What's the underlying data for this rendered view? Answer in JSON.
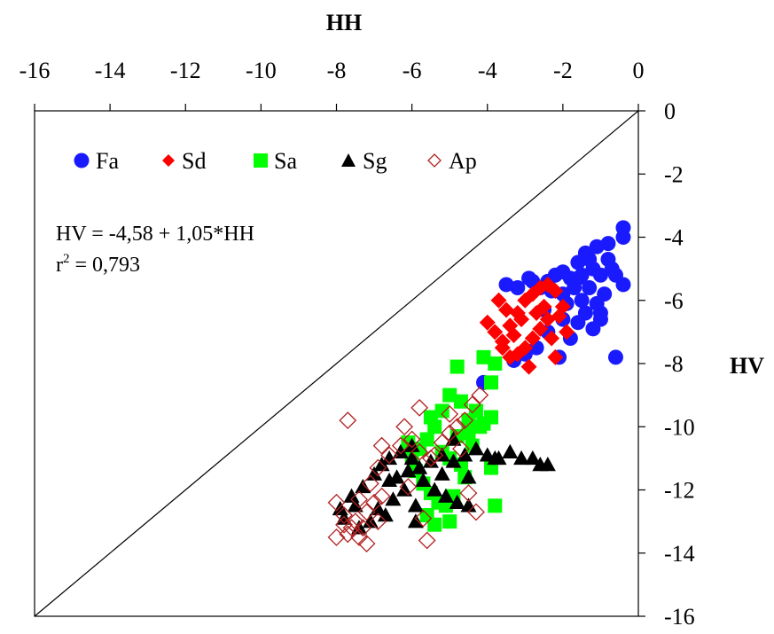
{
  "chart_data": {
    "type": "scatter",
    "xlabel": "HH",
    "ylabel": "HV",
    "xlim": [
      -16,
      0
    ],
    "ylim": [
      -16,
      0
    ],
    "x_ticks": [
      -16,
      -14,
      -12,
      -10,
      -8,
      -6,
      -4,
      -2,
      0
    ],
    "y_ticks": [
      0,
      -2,
      -4,
      -6,
      -8,
      -10,
      -12,
      -14,
      -16
    ],
    "x_tick_labels": [
      "-16",
      "-14",
      "-12",
      "-10",
      "-8",
      "-6",
      "-4",
      "-2",
      "0"
    ],
    "y_tick_labels": [
      "0",
      "-2",
      "-4",
      "-6",
      "-8",
      "-10",
      "-12",
      "-14",
      "-16"
    ],
    "x_axis_position": "top",
    "y_axis_position": "right",
    "grid": false,
    "legend": "top-left",
    "reference_line": "1:1",
    "annotation": {
      "equation": "HV = -4,58 + 1,05*HH",
      "r2_prefix": "r",
      "r2_sup": "2",
      "r2_value": " = 0,793"
    },
    "series": [
      {
        "name": "Fa",
        "marker": "circle",
        "color": "#1a1aff",
        "points": [
          [
            -0.4,
            -3.7
          ],
          [
            -0.4,
            -4.0
          ],
          [
            -0.6,
            -5.2
          ],
          [
            -0.4,
            -5.5
          ],
          [
            -0.6,
            -7.8
          ],
          [
            -0.8,
            -4.2
          ],
          [
            -1.1,
            -4.3
          ],
          [
            -1.2,
            -5.0
          ],
          [
            -1.4,
            -4.5
          ],
          [
            -1.5,
            -5.2
          ],
          [
            -1.6,
            -4.8
          ],
          [
            -1.0,
            -5.2
          ],
          [
            -0.9,
            -5.8
          ],
          [
            -1.3,
            -5.6
          ],
          [
            -1.7,
            -5.6
          ],
          [
            -1.8,
            -5.3
          ],
          [
            -2.0,
            -5.1
          ],
          [
            -2.2,
            -5.2
          ],
          [
            -2.4,
            -5.4
          ],
          [
            -1.5,
            -6.0
          ],
          [
            -1.1,
            -6.1
          ],
          [
            -1.0,
            -6.6
          ],
          [
            -1.4,
            -6.4
          ],
          [
            -1.9,
            -6.1
          ],
          [
            -2.0,
            -5.8
          ],
          [
            -2.3,
            -5.7
          ],
          [
            -2.6,
            -5.6
          ],
          [
            -2.8,
            -5.4
          ],
          [
            -3.2,
            -5.6
          ],
          [
            -3.5,
            -5.5
          ],
          [
            -1.2,
            -6.9
          ],
          [
            -1.6,
            -6.7
          ],
          [
            -2.0,
            -6.6
          ],
          [
            -1.8,
            -7.2
          ],
          [
            -2.4,
            -7.0
          ],
          [
            -2.7,
            -7.5
          ],
          [
            -3.0,
            -7.7
          ],
          [
            -2.1,
            -7.8
          ],
          [
            -2.5,
            -6.3
          ],
          [
            -0.7,
            -5.0
          ],
          [
            -0.8,
            -4.7
          ],
          [
            -1.3,
            -4.7
          ],
          [
            -2.9,
            -5.3
          ],
          [
            -3.3,
            -7.9
          ],
          [
            -4.1,
            -8.6
          ],
          [
            -1.0,
            -6.4
          ],
          [
            -1.6,
            -5.3
          ]
        ]
      },
      {
        "name": "Sd",
        "marker": "diamond",
        "color": "#ff0000",
        "points": [
          [
            -4.0,
            -6.7
          ],
          [
            -3.8,
            -7.0
          ],
          [
            -3.6,
            -7.3
          ],
          [
            -3.4,
            -6.8
          ],
          [
            -3.2,
            -6.4
          ],
          [
            -3.0,
            -6.0
          ],
          [
            -2.8,
            -5.8
          ],
          [
            -2.6,
            -5.6
          ],
          [
            -2.4,
            -5.5
          ],
          [
            -2.2,
            -5.7
          ],
          [
            -2.0,
            -6.2
          ],
          [
            -2.4,
            -6.6
          ],
          [
            -2.6,
            -6.9
          ],
          [
            -2.8,
            -7.2
          ],
          [
            -3.0,
            -7.5
          ],
          [
            -3.2,
            -7.7
          ],
          [
            -3.4,
            -7.8
          ],
          [
            -3.6,
            -7.5
          ],
          [
            -2.9,
            -8.1
          ],
          [
            -2.2,
            -7.8
          ],
          [
            -1.9,
            -7.0
          ],
          [
            -2.1,
            -6.5
          ],
          [
            -2.5,
            -6.2
          ],
          [
            -3.1,
            -6.6
          ],
          [
            -3.5,
            -6.3
          ],
          [
            -3.7,
            -6.0
          ],
          [
            -2.7,
            -6.4
          ],
          [
            -2.3,
            -7.2
          ],
          [
            -3.3,
            -7.1
          ]
        ]
      },
      {
        "name": "Sa",
        "marker": "square",
        "color": "#00ff00",
        "points": [
          [
            -4.8,
            -8.1
          ],
          [
            -4.1,
            -7.8
          ],
          [
            -3.8,
            -8.0
          ],
          [
            -3.9,
            -8.6
          ],
          [
            -4.3,
            -9.5
          ],
          [
            -4.5,
            -9.8
          ],
          [
            -4.2,
            -10.0
          ],
          [
            -3.9,
            -9.7
          ],
          [
            -4.7,
            -9.2
          ],
          [
            -5.0,
            -9.0
          ],
          [
            -5.2,
            -9.5
          ],
          [
            -5.4,
            -10.0
          ],
          [
            -5.6,
            -10.4
          ],
          [
            -5.8,
            -10.7
          ],
          [
            -6.0,
            -10.9
          ],
          [
            -5.9,
            -11.4
          ],
          [
            -5.7,
            -11.8
          ],
          [
            -5.5,
            -12.1
          ],
          [
            -5.3,
            -12.4
          ],
          [
            -5.6,
            -12.8
          ],
          [
            -5.4,
            -13.1
          ],
          [
            -5.1,
            -12.5
          ],
          [
            -4.9,
            -12.2
          ],
          [
            -4.6,
            -11.6
          ],
          [
            -4.7,
            -11.2
          ],
          [
            -5.0,
            -11.0
          ],
          [
            -4.4,
            -10.6
          ],
          [
            -4.1,
            -9.9
          ],
          [
            -4.8,
            -10.3
          ],
          [
            -5.2,
            -10.8
          ],
          [
            -3.8,
            -12.5
          ],
          [
            -3.9,
            -11.3
          ],
          [
            -5.5,
            -9.7
          ],
          [
            -6.1,
            -10.5
          ],
          [
            -5.0,
            -13.0
          ],
          [
            -4.5,
            -10.2
          ]
        ]
      },
      {
        "name": "Sg",
        "marker": "triangle",
        "color": "#000000",
        "points": [
          [
            -7.9,
            -12.6
          ],
          [
            -7.6,
            -12.2
          ],
          [
            -7.3,
            -11.9
          ],
          [
            -7.0,
            -11.5
          ],
          [
            -6.8,
            -11.2
          ],
          [
            -6.6,
            -11.0
          ],
          [
            -6.3,
            -10.8
          ],
          [
            -6.0,
            -11.0
          ],
          [
            -5.8,
            -11.3
          ],
          [
            -5.5,
            -11.1
          ],
          [
            -5.2,
            -10.9
          ],
          [
            -4.9,
            -11.1
          ],
          [
            -4.6,
            -10.9
          ],
          [
            -4.3,
            -10.7
          ],
          [
            -4.0,
            -10.9
          ],
          [
            -3.7,
            -11.0
          ],
          [
            -3.4,
            -10.8
          ],
          [
            -3.1,
            -11.0
          ],
          [
            -2.8,
            -11.0
          ],
          [
            -2.6,
            -11.2
          ],
          [
            -2.4,
            -11.2
          ],
          [
            -6.5,
            -12.3
          ],
          [
            -6.2,
            -12.0
          ],
          [
            -5.9,
            -12.5
          ],
          [
            -6.7,
            -12.8
          ],
          [
            -7.1,
            -13.0
          ],
          [
            -7.4,
            -13.2
          ],
          [
            -6.9,
            -12.6
          ],
          [
            -6.4,
            -11.6
          ],
          [
            -6.1,
            -11.4
          ],
          [
            -5.7,
            -11.7
          ],
          [
            -5.4,
            -12.0
          ],
          [
            -5.1,
            -12.2
          ],
          [
            -4.8,
            -12.4
          ],
          [
            -4.5,
            -12.5
          ],
          [
            -7.8,
            -12.9
          ],
          [
            -5.9,
            -13.0
          ],
          [
            -6.6,
            -11.7
          ],
          [
            -7.5,
            -12.5
          ],
          [
            -5.2,
            -11.5
          ],
          [
            -4.5,
            -11.6
          ],
          [
            -3.8,
            -11.0
          ],
          [
            -6.0,
            -10.6
          ],
          [
            -4.9,
            -10.4
          ]
        ]
      },
      {
        "name": "Ap",
        "marker": "diamond-open",
        "color": "#b22222",
        "points": [
          [
            -8.0,
            -12.4
          ],
          [
            -7.8,
            -12.8
          ],
          [
            -7.6,
            -13.2
          ],
          [
            -7.4,
            -13.5
          ],
          [
            -7.2,
            -13.7
          ],
          [
            -7.5,
            -13.0
          ],
          [
            -7.2,
            -12.7
          ],
          [
            -7.0,
            -12.4
          ],
          [
            -6.8,
            -12.2
          ],
          [
            -6.9,
            -13.0
          ],
          [
            -7.7,
            -13.4
          ],
          [
            -8.0,
            -13.5
          ],
          [
            -7.3,
            -13.2
          ],
          [
            -7.1,
            -11.8
          ],
          [
            -6.9,
            -11.3
          ],
          [
            -6.6,
            -10.9
          ],
          [
            -6.3,
            -10.6
          ],
          [
            -6.0,
            -10.4
          ],
          [
            -5.8,
            -10.8
          ],
          [
            -5.5,
            -11.0
          ],
          [
            -5.2,
            -10.5
          ],
          [
            -5.0,
            -10.2
          ],
          [
            -4.8,
            -10.0
          ],
          [
            -4.6,
            -9.8
          ],
          [
            -4.4,
            -9.3
          ],
          [
            -4.2,
            -9.0
          ],
          [
            -7.7,
            -9.8
          ],
          [
            -6.2,
            -10.0
          ],
          [
            -5.8,
            -9.4
          ],
          [
            -5.0,
            -9.6
          ],
          [
            -4.7,
            -10.7
          ],
          [
            -4.5,
            -12.1
          ],
          [
            -4.3,
            -12.7
          ],
          [
            -5.6,
            -13.6
          ],
          [
            -5.7,
            -12.9
          ],
          [
            -6.1,
            -11.9
          ],
          [
            -6.8,
            -10.6
          ],
          [
            -5.4,
            -10.9
          ],
          [
            -7.8,
            -13.1
          ],
          [
            -7.4,
            -12.3
          ]
        ]
      }
    ]
  }
}
